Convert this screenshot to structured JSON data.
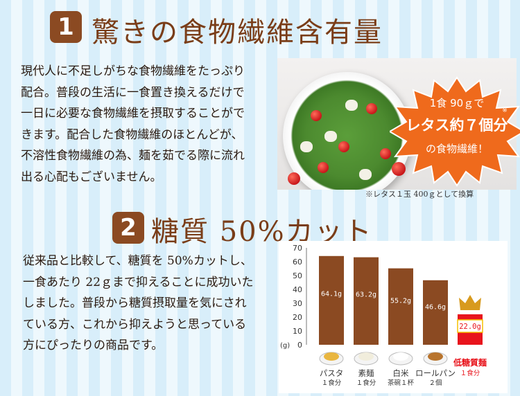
{
  "section1": {
    "number": "1",
    "title": "驚きの食物繊維含有量",
    "lines": [
      "現代人に不足しがちな食物繊維をたっぷり",
      "配合。普段の生活に一食置き換えるだけで",
      "一日に必要な食物繊維を摂取することがで",
      "きます。配合した食物繊維のほとんどが、",
      "不溶性食物繊維の為、麺を茹でる際に流れ",
      "出る心配もございません。"
    ],
    "burst": {
      "line1": "1食 90ｇで",
      "asterisk": "※",
      "line2": "レタス約７個分",
      "line3": "の食物繊維！"
    },
    "note": "※レタス１玉 400ｇとして換算"
  },
  "section2": {
    "number": "2",
    "title": "糖質 50%カット",
    "lines": [
      "従来品と比較して、糖質を 50%カットし、",
      "一食あたり 22ｇまで抑えることに成功いた",
      "しました。普段から糖質摂取量を気にされ",
      "ている方、これから抑えようと思っている",
      "方にぴったりの商品です。"
    ]
  },
  "chart_data": {
    "type": "bar",
    "unit_label": "(g)",
    "ylim": [
      0,
      70
    ],
    "yticks": [
      "0",
      "10",
      "20",
      "30",
      "40",
      "50",
      "60",
      "70"
    ],
    "categories": [
      {
        "name": "パスタ",
        "sub": "１食分"
      },
      {
        "name": "素麺",
        "sub": "１食分"
      },
      {
        "name": "白米",
        "sub": "茶碗１杯"
      },
      {
        "name": "ロールパン",
        "sub": "２個"
      },
      {
        "name": "低糖質麺",
        "sub": "１食分"
      }
    ],
    "values": [
      64.1,
      63.2,
      55.2,
      46.6,
      22.0
    ],
    "value_labels": [
      "64.1g",
      "63.2g",
      "55.2g",
      "46.6g",
      "22.0g"
    ],
    "colors": {
      "regular": "#8b4a22",
      "highlight": "#e8141c",
      "crown": "#d89a1e"
    }
  }
}
